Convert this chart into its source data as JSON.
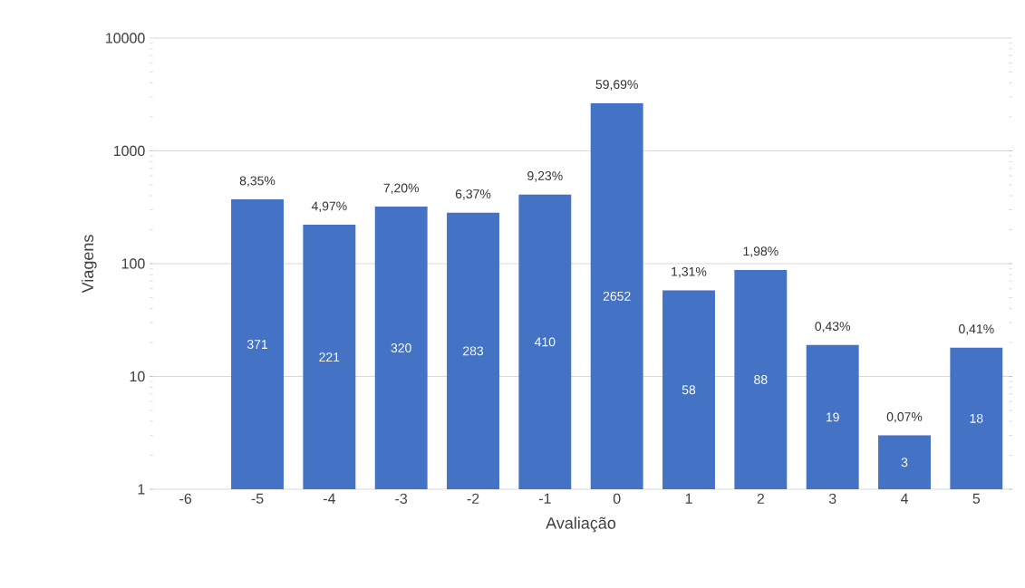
{
  "chart_data": {
    "type": "bar",
    "xlabel": "Avaliação",
    "ylabel": "Viagens",
    "categories": [
      "-6",
      "-5",
      "-4",
      "-3",
      "-2",
      "-1",
      "0",
      "1",
      "2",
      "3",
      "4",
      "5"
    ],
    "values": [
      null,
      371,
      221,
      320,
      283,
      410,
      2652,
      58,
      88,
      19,
      3,
      18
    ],
    "value_labels": [
      null,
      "371",
      "221",
      "320",
      "283",
      "410",
      "2652",
      "58",
      "88",
      "19",
      "3",
      "18"
    ],
    "annotations": [
      {
        "text": "8,35%",
        "x": "-5",
        "y": 371
      },
      {
        "text": "4,97%",
        "x": "-4",
        "y": 221
      },
      {
        "text": "7,20%",
        "x": "-3",
        "y": 320
      },
      {
        "text": "6,37%",
        "x": "-2",
        "y": 283
      },
      {
        "text": "9,23%",
        "x": "-1",
        "y": 410
      },
      {
        "text": "59,69%",
        "x": "0",
        "y": 2652
      },
      {
        "text": "1,31%",
        "x": "1",
        "y": 58
      },
      {
        "text": "1,98%",
        "x": "2",
        "y": 88
      },
      {
        "text": "0,43%",
        "x": "3",
        "y": 19
      },
      {
        "text": "0,07%",
        "x": "4",
        "y": 3
      },
      {
        "text": "0,41%",
        "x": "5",
        "y": 18
      }
    ],
    "color": "#4472c4",
    "log": true,
    "grid": "y",
    "ylim": [
      1,
      10000
    ],
    "yticks": [
      1,
      10,
      100,
      1000,
      10000
    ]
  }
}
